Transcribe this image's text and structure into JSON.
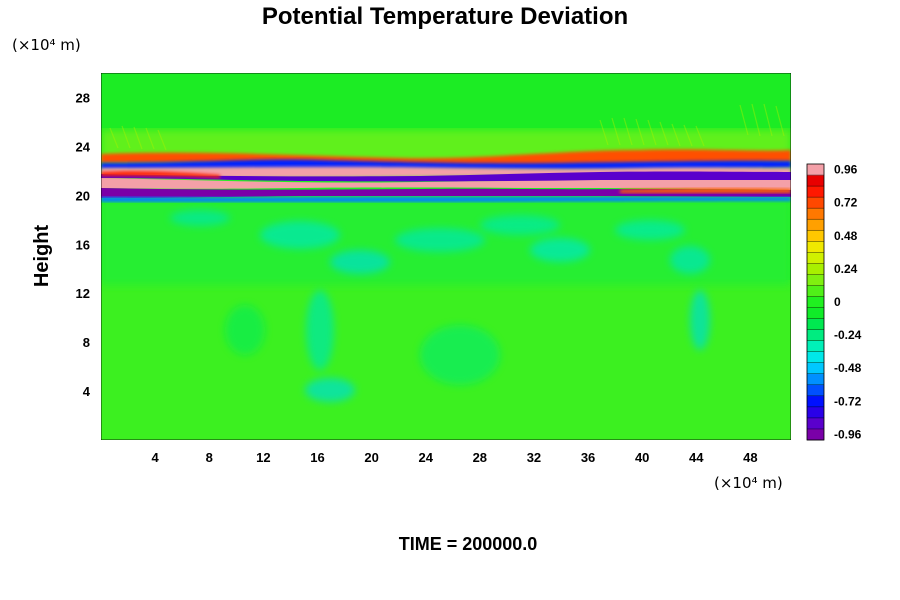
{
  "chart_data": {
    "type": "heatmap",
    "title": "Potential Temperature Deviation",
    "ylabel": "Height",
    "x_unit": "(×10⁴ m)",
    "y_unit": "(×10⁴ m)",
    "footer": "TIME = 200000.0",
    "xlim": [
      0,
      51
    ],
    "ylim": [
      0,
      30
    ],
    "x_ticks": [
      4,
      8,
      12,
      16,
      20,
      24,
      28,
      32,
      36,
      40,
      44,
      48
    ],
    "y_ticks": [
      4,
      8,
      12,
      16,
      20,
      24,
      28
    ],
    "colorbar": {
      "min": -1.0,
      "max": 1.0,
      "levels": 25,
      "tick_labels": [
        "0.96",
        "0.72",
        "0.48",
        "0.24",
        "0",
        "-0.24",
        "-0.48",
        "-0.72",
        "-0.96"
      ],
      "colors": [
        "#7a00a8",
        "#5a00cc",
        "#2a00e8",
        "#0010ff",
        "#0050ff",
        "#0090ff",
        "#00c8ff",
        "#00e8e8",
        "#00f0b8",
        "#00ec80",
        "#00e850",
        "#10ec28",
        "#20f020",
        "#50f018",
        "#80f010",
        "#a8f000",
        "#d0f000",
        "#f0e800",
        "#ffc800",
        "#ffa000",
        "#ff7800",
        "#ff4800",
        "#ff1800",
        "#e80000",
        "#f4a0a8"
      ]
    },
    "field_description": [
      {
        "y_range": [
          0,
          13
        ],
        "value": 0.0,
        "note": "near-zero deviation with faint structures"
      },
      {
        "y_range": [
          13,
          19.5
        ],
        "value": -0.1,
        "note": "slightly negative cyan eddies"
      },
      {
        "y_range": [
          19.5,
          23
        ],
        "value": 1.0,
        "note": "strong positive/negative layers"
      },
      {
        "y_range": [
          23,
          30
        ],
        "value": 0.05,
        "note": "near-zero with gravity wave ripples"
      }
    ]
  }
}
